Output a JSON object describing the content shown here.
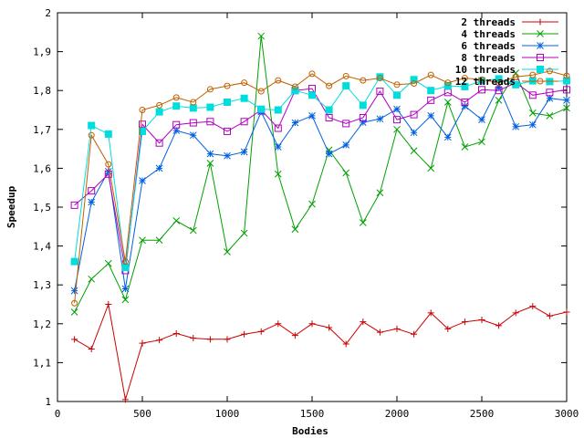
{
  "chart_data": {
    "type": "line",
    "title": "",
    "xlabel": "Bodies",
    "ylabel": "Speedup",
    "xlim": [
      0,
      3000
    ],
    "ylim": [
      1,
      2
    ],
    "xticks": [
      0,
      500,
      1000,
      1500,
      2000,
      2500,
      3000
    ],
    "yticks": [
      1,
      1.1,
      1.2,
      1.3,
      1.4,
      1.5,
      1.6,
      1.7,
      1.8,
      1.9,
      2
    ],
    "ytick_labels": [
      "1",
      "1,1",
      "1,2",
      "1,3",
      "1,4",
      "1,5",
      "1,6",
      "1,7",
      "1,8",
      "1,9",
      "2"
    ],
    "xtick_labels": [
      "0",
      "500",
      "1000",
      "1500",
      "2000",
      "2500",
      "3000"
    ],
    "grid": false,
    "legend_position": "top-right",
    "x": [
      100,
      200,
      300,
      400,
      500,
      600,
      700,
      800,
      900,
      1000,
      1100,
      1200,
      1300,
      1400,
      1500,
      1600,
      1700,
      1800,
      1900,
      2000,
      2100,
      2200,
      2300,
      2400,
      2500,
      2600,
      2700,
      2800,
      2900,
      3000
    ],
    "series": [
      {
        "name": "2 threads",
        "color": "#cc0000",
        "marker": "plus",
        "values": [
          1.16,
          1.135,
          1.25,
          1.005,
          1.15,
          1.158,
          1.175,
          1.163,
          1.16,
          1.16,
          1.173,
          1.18,
          1.2,
          1.17,
          1.2,
          1.19,
          1.148,
          1.205,
          1.178,
          1.187,
          1.173,
          1.228,
          1.187,
          1.205,
          1.21,
          1.195,
          1.228,
          1.245,
          1.22,
          1.23
        ]
      },
      {
        "name": "4 threads",
        "color": "#00a000",
        "marker": "cross",
        "values": [
          1.23,
          1.315,
          1.355,
          1.262,
          1.415,
          1.415,
          1.465,
          1.44,
          1.613,
          1.385,
          1.433,
          1.94,
          1.585,
          1.443,
          1.508,
          1.647,
          1.588,
          1.46,
          1.537,
          1.7,
          1.645,
          1.6,
          1.77,
          1.655,
          1.668,
          1.775,
          1.845,
          1.742,
          1.735,
          1.755
        ]
      },
      {
        "name": "6 threads",
        "color": "#0060e0",
        "marker": "star",
        "values": [
          1.285,
          1.513,
          1.592,
          1.29,
          1.568,
          1.6,
          1.697,
          1.685,
          1.637,
          1.632,
          1.642,
          1.745,
          1.655,
          1.717,
          1.735,
          1.637,
          1.66,
          1.718,
          1.727,
          1.752,
          1.692,
          1.735,
          1.68,
          1.76,
          1.725,
          1.81,
          1.707,
          1.712,
          1.78,
          1.775
        ]
      },
      {
        "name": "8 threads",
        "color": "#b000c0",
        "marker": "square",
        "values": [
          1.505,
          1.542,
          1.585,
          1.337,
          1.713,
          1.665,
          1.712,
          1.717,
          1.72,
          1.695,
          1.72,
          1.75,
          1.703,
          1.8,
          1.805,
          1.73,
          1.715,
          1.73,
          1.798,
          1.725,
          1.738,
          1.775,
          1.795,
          1.77,
          1.802,
          1.8,
          1.82,
          1.788,
          1.795,
          1.802
        ]
      },
      {
        "name": "10 threads",
        "color": "#00dddd",
        "marker": "filled-square",
        "values": [
          1.36,
          1.71,
          1.688,
          1.345,
          1.695,
          1.745,
          1.76,
          1.755,
          1.757,
          1.77,
          1.78,
          1.752,
          1.75,
          1.8,
          1.788,
          1.75,
          1.812,
          1.762,
          1.835,
          1.788,
          1.828,
          1.8,
          1.812,
          1.81,
          1.825,
          1.83,
          1.815,
          1.825,
          1.823,
          1.825
        ]
      },
      {
        "name": "12 threads",
        "color": "#c06000",
        "marker": "circle",
        "values": [
          1.253,
          1.685,
          1.61,
          1.36,
          1.75,
          1.762,
          1.782,
          1.77,
          1.803,
          1.812,
          1.82,
          1.798,
          1.826,
          1.81,
          1.843,
          1.812,
          1.837,
          1.826,
          1.832,
          1.815,
          1.818,
          1.84,
          1.82,
          1.832,
          1.828,
          1.82,
          1.835,
          1.84,
          1.85,
          1.838
        ]
      }
    ]
  }
}
